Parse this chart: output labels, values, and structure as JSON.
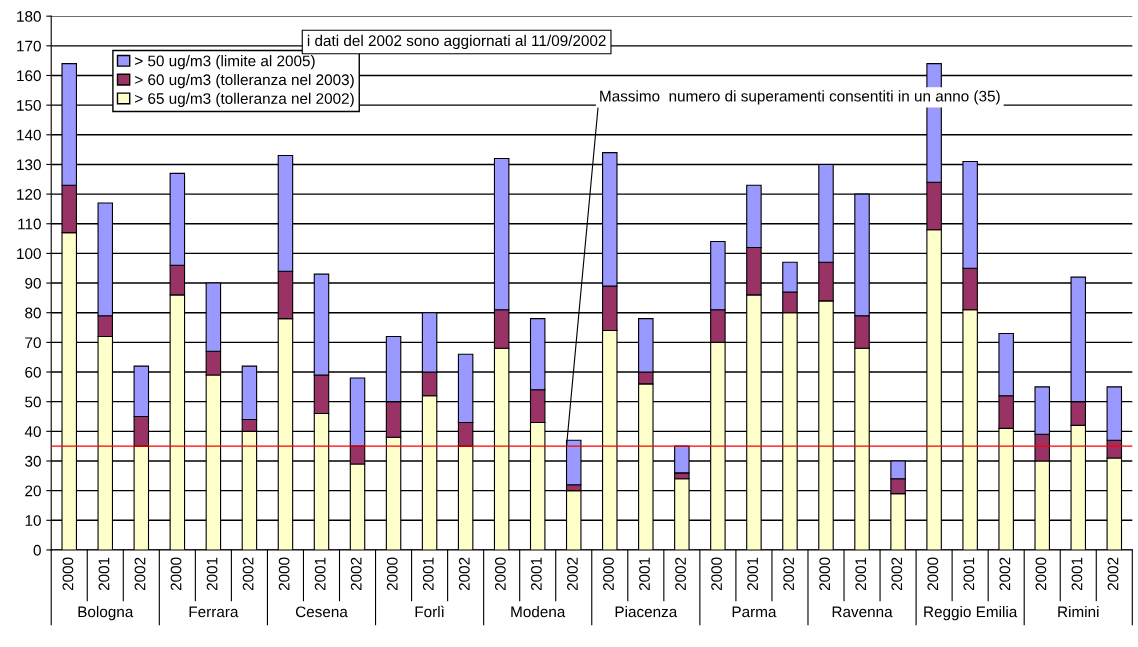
{
  "chart_data": {
    "type": "bar",
    "stacked": true,
    "categories": [
      "2000",
      "2001",
      "2002",
      "2000",
      "2001",
      "2002",
      "2000",
      "2001",
      "2002",
      "2000",
      "2001",
      "2002",
      "2000",
      "2001",
      "2002",
      "2000",
      "2001",
      "2002",
      "2000",
      "2001",
      "2002",
      "2000",
      "2001",
      "2002",
      "2000",
      "2001",
      "2002",
      "2000",
      "2001",
      "2002"
    ],
    "series": [
      {
        "name": "> 65 ug/m3 (tolleranza nel 2002)",
        "color": "#ffffcc",
        "values": [
          107,
          72,
          35,
          86,
          59,
          40,
          78,
          46,
          29,
          38,
          52,
          35,
          68,
          43,
          20,
          74,
          56,
          24,
          70,
          86,
          80,
          84,
          68,
          19,
          108,
          81,
          41,
          30,
          42,
          31
        ]
      },
      {
        "name": "> 60 ug/m3 (tolleranza nel 2003)",
        "color": "#993366",
        "values": [
          16,
          7,
          10,
          10,
          8,
          4,
          16,
          13,
          6,
          12,
          8,
          8,
          13,
          11,
          2,
          15,
          4,
          2,
          11,
          16,
          7,
          13,
          11,
          5,
          16,
          14,
          11,
          9,
          8,
          6
        ]
      },
      {
        "name": "> 50 ug/m3 (limite al 2005)",
        "color": "#9999ff",
        "values": [
          41,
          38,
          17,
          31,
          23,
          18,
          39,
          34,
          23,
          22,
          20,
          23,
          51,
          24,
          15,
          45,
          18,
          9,
          23,
          21,
          10,
          33,
          41,
          6,
          40,
          36,
          21,
          16,
          42,
          18
        ]
      }
    ],
    "ylim": [
      0,
      180
    ],
    "yticks": [
      0,
      10,
      20,
      30,
      40,
      50,
      60,
      70,
      80,
      90,
      100,
      110,
      120,
      130,
      140,
      150,
      160,
      170,
      180
    ],
    "grid": "y",
    "legend": "top left",
    "ref_lines": [
      {
        "axis": "y",
        "value": 35,
        "label": "Massimo  numero di superamenti consentiti in un anno (35)",
        "color": "#ff0000"
      }
    ],
    "annotations": [
      "i dati del 2002 sono aggiornati al 11/09/2002",
      "Bologna",
      "Ferrara",
      "Cesena",
      "Forlì",
      "Modena",
      "Piacenza",
      "Parma",
      "Ravenna",
      "Reggio Emilia",
      "Rimini"
    ]
  }
}
